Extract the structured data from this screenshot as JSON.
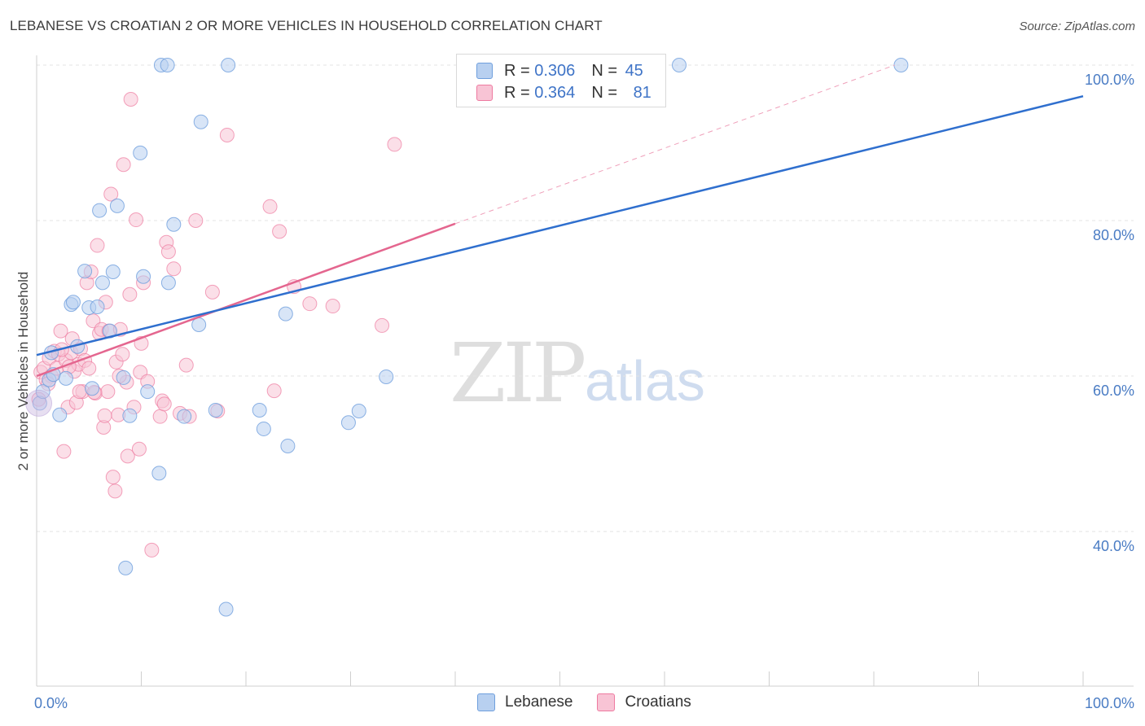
{
  "title": "LEBANESE VS CROATIAN 2 OR MORE VEHICLES IN HOUSEHOLD CORRELATION CHART",
  "source": "Source: ZipAtlas.com",
  "watermark": {
    "zip": "ZIP",
    "atlas": "atlas"
  },
  "legend": {
    "rows": [
      {
        "r_label": "R = ",
        "r_value": "0.306",
        "n_label": "N = ",
        "n_value": "45"
      },
      {
        "r_label": "R = ",
        "r_value": "0.364",
        "n_label": "N = ",
        "n_value": "81"
      }
    ]
  },
  "colors": {
    "lebanese": "#6f9fdd",
    "lebanese_fill": "#b8d0f0",
    "croatians": "#ee7aa0",
    "croatians_fill": "#f8c4d5",
    "tick": "#4a7cc4"
  },
  "chart_data": {
    "type": "scatter",
    "xlabel": "",
    "ylabel": "2 or more Vehicles in Household",
    "xlim": [
      0,
      100
    ],
    "ylim": [
      22,
      102
    ],
    "x_tick_labels": [
      "0.0%",
      "100.0%"
    ],
    "y_ticks": [
      40,
      60,
      80,
      100
    ],
    "y_tick_labels": [
      "40.0%",
      "60.0%",
      "80.0%",
      "100.0%"
    ],
    "grid": true,
    "legend_position": "top-center",
    "series": [
      {
        "name": "Lebanese",
        "r": 0.306,
        "n": 45,
        "trend": {
          "x": [
            0,
            100
          ],
          "y": [
            62.7,
            96.0
          ]
        },
        "points": [
          [
            0.3,
            56.5
          ],
          [
            0.6,
            58.0
          ],
          [
            1.2,
            59.5
          ],
          [
            1.6,
            60.2
          ],
          [
            2.2,
            55.0
          ],
          [
            2.8,
            59.7
          ],
          [
            3.3,
            69.2
          ],
          [
            3.5,
            69.5
          ],
          [
            3.9,
            63.8
          ],
          [
            4.6,
            73.5
          ],
          [
            5.0,
            68.8
          ],
          [
            5.3,
            58.4
          ],
          [
            5.8,
            68.9
          ],
          [
            6.0,
            81.3
          ],
          [
            6.3,
            72.0
          ],
          [
            7.0,
            65.8
          ],
          [
            7.3,
            73.4
          ],
          [
            7.7,
            81.9
          ],
          [
            8.3,
            59.8
          ],
          [
            8.5,
            35.3
          ],
          [
            8.9,
            54.9
          ],
          [
            9.9,
            88.7
          ],
          [
            10.2,
            72.8
          ],
          [
            10.6,
            58.0
          ],
          [
            11.7,
            47.5
          ],
          [
            12.6,
            72.0
          ],
          [
            13.1,
            79.5
          ],
          [
            11.9,
            100.0
          ],
          [
            12.5,
            100.0
          ],
          [
            14.1,
            54.8
          ],
          [
            15.5,
            66.6
          ],
          [
            15.7,
            92.7
          ],
          [
            17.1,
            55.6
          ],
          [
            18.1,
            30.0
          ],
          [
            18.3,
            100.0
          ],
          [
            21.3,
            55.6
          ],
          [
            21.7,
            53.2
          ],
          [
            23.8,
            68.0
          ],
          [
            24.0,
            51.0
          ],
          [
            29.8,
            54.0
          ],
          [
            30.8,
            55.5
          ],
          [
            33.4,
            59.9
          ],
          [
            61.4,
            100.0
          ],
          [
            82.6,
            100.0
          ],
          [
            1.4,
            63.0
          ]
        ]
      },
      {
        "name": "Croatians",
        "r": 0.364,
        "n": 81,
        "trend": {
          "x": [
            0,
            40
          ],
          "y": [
            60.0,
            79.6
          ]
        },
        "trend_extended": {
          "x": [
            40,
            82
          ],
          "y": [
            79.6,
            100.0
          ]
        },
        "points": [
          [
            0.2,
            57.0
          ],
          [
            0.4,
            60.5
          ],
          [
            0.7,
            61.0
          ],
          [
            0.9,
            59.5
          ],
          [
            1.2,
            62.3
          ],
          [
            1.4,
            60.0
          ],
          [
            1.7,
            63.2
          ],
          [
            1.9,
            61.0
          ],
          [
            2.1,
            62.8
          ],
          [
            2.3,
            65.8
          ],
          [
            2.6,
            50.3
          ],
          [
            2.8,
            62.0
          ],
          [
            3.0,
            56.0
          ],
          [
            3.3,
            63.0
          ],
          [
            3.4,
            64.8
          ],
          [
            3.6,
            60.6
          ],
          [
            3.8,
            56.6
          ],
          [
            4.0,
            61.5
          ],
          [
            4.2,
            63.5
          ],
          [
            4.4,
            58.0
          ],
          [
            4.6,
            62.0
          ],
          [
            4.8,
            72.0
          ],
          [
            5.0,
            61.0
          ],
          [
            5.2,
            73.4
          ],
          [
            5.4,
            67.1
          ],
          [
            5.6,
            57.8
          ],
          [
            5.8,
            76.8
          ],
          [
            6.0,
            65.5
          ],
          [
            6.2,
            66.0
          ],
          [
            6.4,
            53.4
          ],
          [
            6.6,
            69.5
          ],
          [
            6.8,
            58.0
          ],
          [
            6.9,
            65.8
          ],
          [
            7.1,
            83.4
          ],
          [
            7.3,
            47.0
          ],
          [
            7.5,
            45.2
          ],
          [
            7.6,
            61.8
          ],
          [
            7.8,
            55.0
          ],
          [
            8.0,
            66.0
          ],
          [
            8.2,
            62.8
          ],
          [
            8.3,
            87.2
          ],
          [
            8.6,
            59.2
          ],
          [
            8.7,
            49.7
          ],
          [
            8.9,
            70.5
          ],
          [
            9.0,
            95.6
          ],
          [
            9.3,
            56.0
          ],
          [
            9.5,
            80.1
          ],
          [
            9.8,
            50.6
          ],
          [
            9.9,
            60.5
          ],
          [
            10.0,
            64.2
          ],
          [
            10.2,
            72.0
          ],
          [
            11.0,
            37.6
          ],
          [
            11.8,
            54.8
          ],
          [
            12.0,
            56.8
          ],
          [
            12.2,
            56.4
          ],
          [
            12.4,
            77.2
          ],
          [
            12.6,
            76.0
          ],
          [
            13.1,
            73.8
          ],
          [
            13.7,
            55.2
          ],
          [
            14.3,
            61.4
          ],
          [
            14.6,
            54.8
          ],
          [
            15.2,
            80.0
          ],
          [
            16.8,
            70.8
          ],
          [
            17.3,
            55.5
          ],
          [
            18.2,
            91.0
          ],
          [
            22.3,
            81.8
          ],
          [
            22.7,
            58.1
          ],
          [
            23.2,
            78.6
          ],
          [
            24.6,
            71.5
          ],
          [
            26.1,
            69.3
          ],
          [
            28.3,
            69.0
          ],
          [
            33.0,
            66.5
          ],
          [
            34.2,
            89.8
          ],
          [
            2.4,
            63.4
          ],
          [
            3.1,
            61.2
          ],
          [
            5.5,
            57.9
          ],
          [
            6.5,
            54.9
          ],
          [
            7.9,
            60.0
          ],
          [
            1.1,
            59.0
          ],
          [
            10.6,
            59.3
          ],
          [
            4.1,
            58.0
          ]
        ]
      }
    ]
  }
}
